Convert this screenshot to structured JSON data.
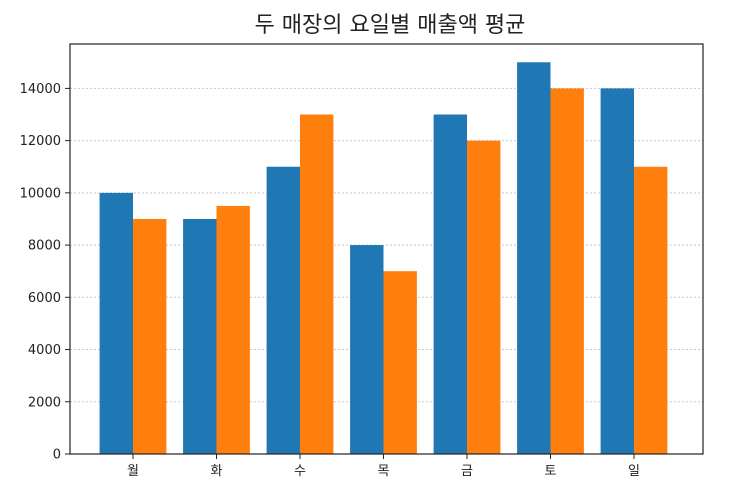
{
  "chart_data": {
    "type": "bar",
    "title": "두 매장의 요일별 매출액 평균",
    "xlabel": "",
    "ylabel": "",
    "categories": [
      "월",
      "화",
      "수",
      "목",
      "금",
      "토",
      "일"
    ],
    "series": [
      {
        "values": [
          10000,
          9000,
          11000,
          8000,
          13000,
          15000,
          14000
        ]
      },
      {
        "values": [
          9000,
          9500,
          13000,
          7000,
          12000,
          14000,
          11000
        ]
      }
    ],
    "ylim": [
      0,
      15700
    ],
    "yticks": [
      0,
      2000,
      4000,
      6000,
      8000,
      10000,
      12000,
      14000
    ],
    "ytick_labels": [
      "0",
      "2000",
      "4000",
      "6000",
      "8000",
      "10000",
      "12000",
      "14000"
    ],
    "grid": "y-dotted",
    "legend": "none",
    "colors": [
      "#1f77b4",
      "#ff7f0e"
    ]
  }
}
